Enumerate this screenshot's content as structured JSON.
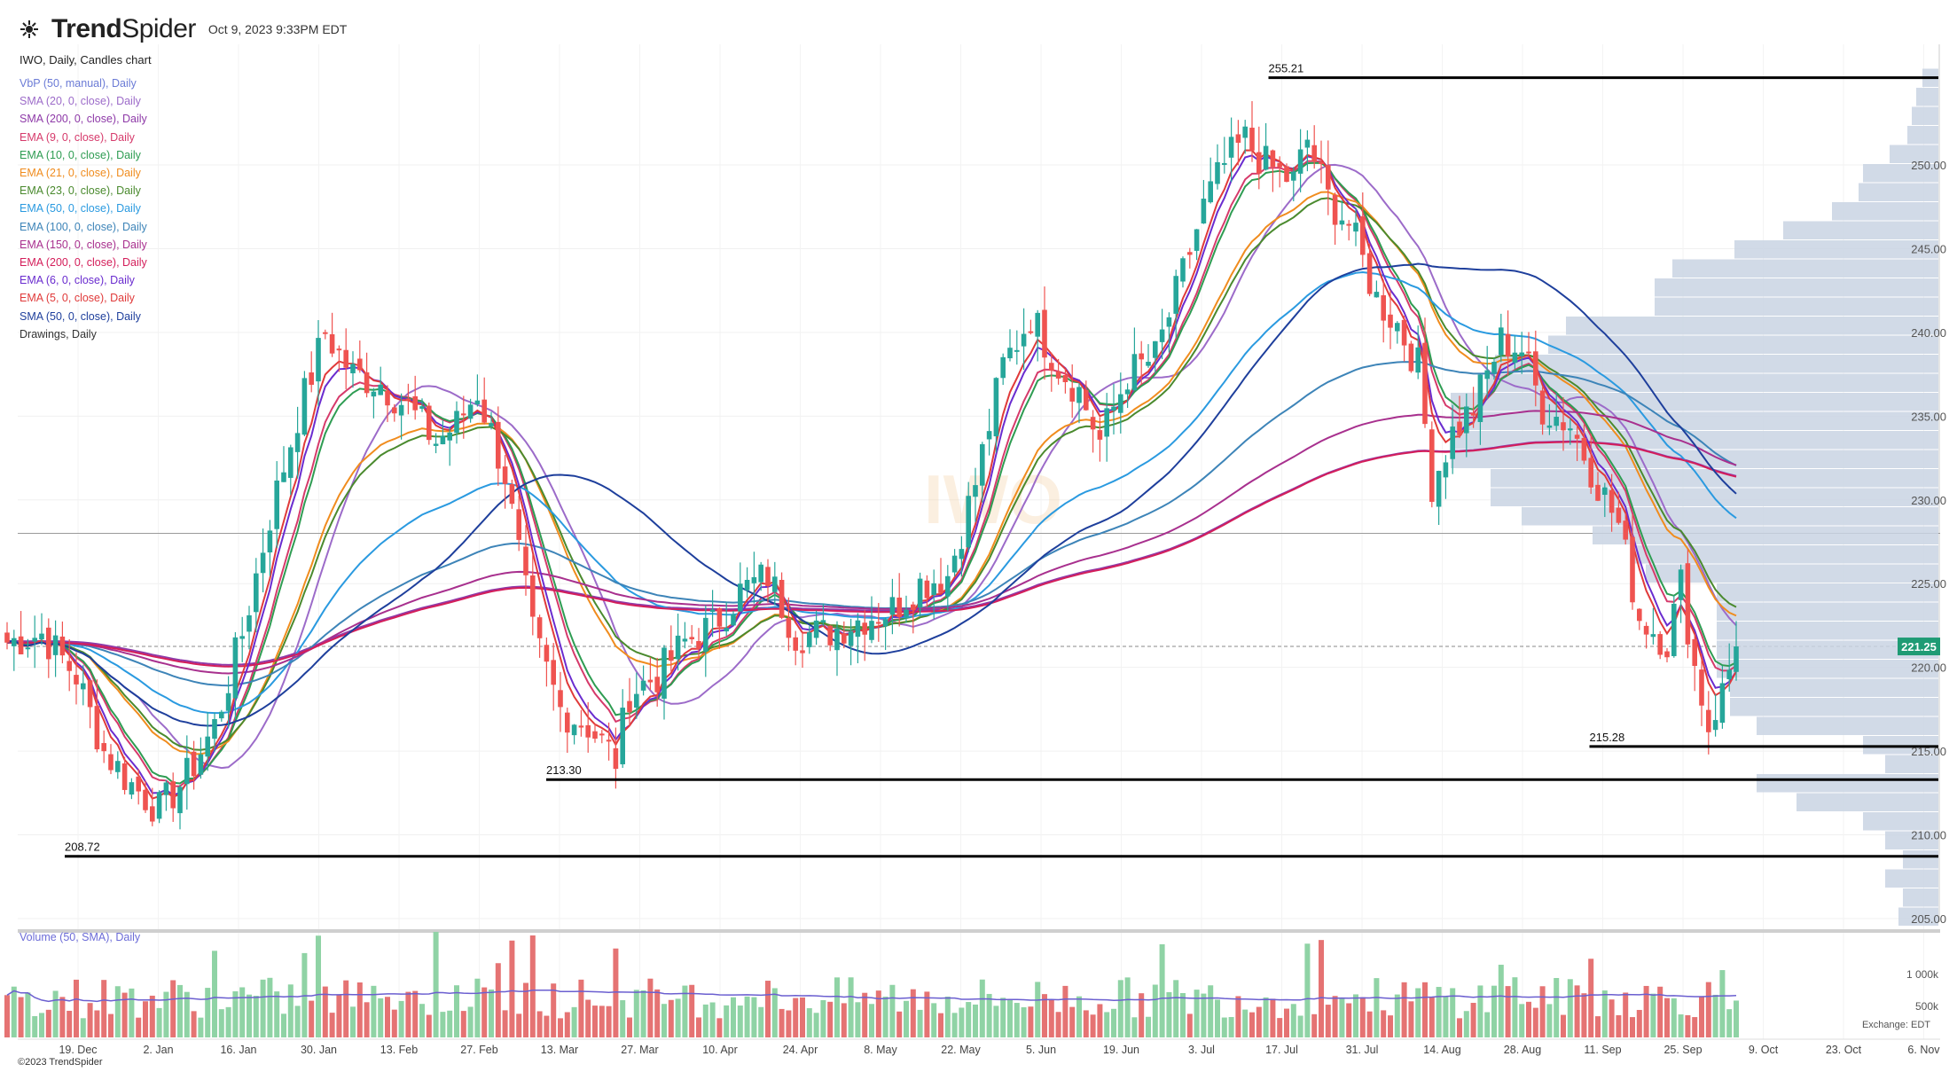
{
  "header": {
    "brand_bold": "Trend",
    "brand_light": "Spider",
    "timestamp": "Oct 9, 2023 9:33PM EDT",
    "subtitle": "IWO, Daily, Candles chart"
  },
  "legend": [
    {
      "label": "VbP (50, manual), Daily",
      "color": "#6b7bd6"
    },
    {
      "label": "SMA (20, 0, close), Daily",
      "color": "#9c6bc9"
    },
    {
      "label": "SMA (200, 0, close), Daily",
      "color": "#8e3aa8"
    },
    {
      "label": "EMA (9, 0, close), Daily",
      "color": "#d63a6b"
    },
    {
      "label": "EMA (10, 0, close), Daily",
      "color": "#2e9c52"
    },
    {
      "label": "EMA (21, 0, close), Daily",
      "color": "#f08c1e"
    },
    {
      "label": "EMA (23, 0, close), Daily",
      "color": "#4a8a2e"
    },
    {
      "label": "EMA (50, 0, close), Daily",
      "color": "#2a9ae0"
    },
    {
      "label": "EMA (100, 0, close), Daily",
      "color": "#3d84b8"
    },
    {
      "label": "EMA (150, 0, close), Daily",
      "color": "#a8308e"
    },
    {
      "label": "EMA (200, 0, close), Daily",
      "color": "#d41e5a"
    },
    {
      "label": "EMA (6, 0, close), Daily",
      "color": "#6a2ccf"
    },
    {
      "label": "EMA (5, 0, close), Daily",
      "color": "#e03a3a"
    },
    {
      "label": "SMA (50, 0, close), Daily",
      "color": "#1e3f9c"
    },
    {
      "label": "Drawings, Daily",
      "color": "#333333"
    }
  ],
  "volume_legend": "Volume (50, SMA), Daily",
  "copyright": "©2023 TrendSpider",
  "exchange": "Exchange: EDT",
  "colors": {
    "up": "#26a69a",
    "down": "#ef5350",
    "vbp": "#c9d3e3",
    "level": "#000000"
  },
  "chart_data": {
    "type": "candlestick",
    "ticker": "IWO",
    "ylim": [
      204,
      259
    ],
    "y_ticks": [
      205,
      210,
      215,
      220,
      225,
      230,
      235,
      240,
      245,
      250
    ],
    "x_ticks": [
      "19. Dec",
      "2. Jan",
      "16. Jan",
      "30. Jan",
      "13. Feb",
      "27. Feb",
      "13. Mar",
      "27. Mar",
      "10. Apr",
      "24. Apr",
      "8. May",
      "22. May",
      "5. Jun",
      "19. Jun",
      "3. Jul",
      "17. Jul",
      "31. Jul",
      "14. Aug",
      "28. Aug",
      "11. Sep",
      "25. Sep",
      "9. Oct",
      "23. Oct",
      "6. Nov"
    ],
    "last_price": 221.25,
    "reference_line": 228.0,
    "levels": [
      {
        "label": "255.21",
        "value": 255.21,
        "from_tick": 15
      },
      {
        "label": "213.30",
        "value": 213.3,
        "from_tick": 6
      },
      {
        "label": "215.28",
        "value": 215.28,
        "from_tick": 19
      },
      {
        "label": "208.72",
        "value": 208.72,
        "from_tick": 0
      }
    ],
    "close_anchors": [
      [
        0,
        221.5
      ],
      [
        5,
        222.0
      ],
      [
        10,
        219.5
      ],
      [
        14,
        215.0
      ],
      [
        18,
        213.0
      ],
      [
        22,
        211.5
      ],
      [
        26,
        213.5
      ],
      [
        30,
        216.5
      ],
      [
        34,
        222.0
      ],
      [
        38,
        229.0
      ],
      [
        42,
        235.0
      ],
      [
        46,
        240.0
      ],
      [
        50,
        237.5
      ],
      [
        54,
        237.0
      ],
      [
        58,
        235.5
      ],
      [
        62,
        233.5
      ],
      [
        65,
        234.5
      ],
      [
        68,
        236.5
      ],
      [
        72,
        231.5
      ],
      [
        76,
        222.0
      ],
      [
        80,
        217.5
      ],
      [
        84,
        216.5
      ],
      [
        88,
        214.5
      ],
      [
        90,
        218.5
      ],
      [
        94,
        219.5
      ],
      [
        98,
        221.5
      ],
      [
        102,
        222.5
      ],
      [
        106,
        224.5
      ],
      [
        110,
        225.5
      ],
      [
        114,
        222.0
      ],
      [
        118,
        222.0
      ],
      [
        121,
        222.5
      ],
      [
        124,
        223.0
      ],
      [
        128,
        223.5
      ],
      [
        132,
        225.0
      ],
      [
        136,
        225.5
      ],
      [
        140,
        231.0
      ],
      [
        144,
        238.0
      ],
      [
        148,
        241.0
      ],
      [
        152,
        238.0
      ],
      [
        155,
        236.5
      ],
      [
        158,
        233.5
      ],
      [
        162,
        237.5
      ],
      [
        166,
        238.5
      ],
      [
        170,
        243.5
      ],
      [
        173,
        247.5
      ],
      [
        176,
        250.0
      ],
      [
        179,
        251.5
      ],
      [
        182,
        250.0
      ],
      [
        186,
        249.0
      ],
      [
        188,
        251.5
      ],
      [
        191,
        248.0
      ],
      [
        194,
        246.5
      ],
      [
        198,
        242.0
      ],
      [
        201,
        240.5
      ],
      [
        204,
        238.0
      ],
      [
        206,
        231.0
      ],
      [
        209,
        234.0
      ],
      [
        212,
        235.5
      ],
      [
        216,
        239.5
      ],
      [
        219,
        239.0
      ],
      [
        222,
        235.5
      ],
      [
        226,
        234.5
      ],
      [
        230,
        231.0
      ],
      [
        233,
        228.5
      ],
      [
        236,
        223.0
      ],
      [
        240,
        221.5
      ],
      [
        242,
        225.0
      ],
      [
        244,
        220.0
      ],
      [
        246,
        216.5
      ],
      [
        248,
        218.5
      ],
      [
        250,
        221.25
      ]
    ],
    "volume_ylim": [
      0,
      1600000
    ],
    "volume_ticks": [
      {
        "label": "500k",
        "value": 500000
      },
      {
        "label": "1 000k",
        "value": 1000000
      }
    ]
  }
}
